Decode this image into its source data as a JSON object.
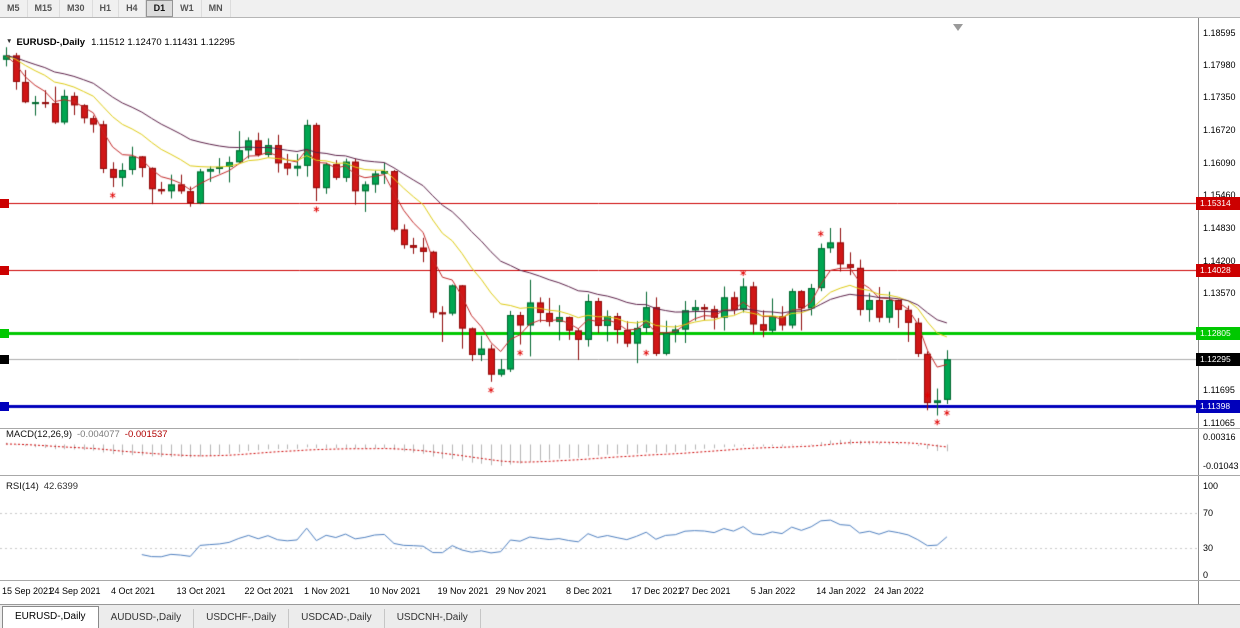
{
  "toolbar": {
    "timeframes": [
      "M5",
      "M15",
      "M30",
      "H1",
      "H4",
      "D1",
      "W1",
      "MN"
    ],
    "active": "D1"
  },
  "icons": {
    "chart_dropdown": "▼"
  },
  "chart": {
    "type": "candlestick",
    "symbol_title": "EURUSD-,Daily",
    "ohlc_text": "1.11512 1.12470 1.11431 1.12295",
    "colors": {
      "up": "#00a651",
      "up_dark": "#00662f",
      "down": "#d01616",
      "down_dark": "#8f0b0b",
      "bid_line": "#ababab",
      "marker": "#e00000"
    },
    "y_axis_ticks": [
      "1.18595",
      "1.17980",
      "1.17350",
      "1.16720",
      "1.16090",
      "1.15460",
      "1.14830",
      "1.14200",
      "1.13570",
      "1.11695",
      "1.11065"
    ],
    "price_lines": [
      {
        "price": 1.15314,
        "label": "1.15314",
        "color": "#cc0000",
        "width": 1
      },
      {
        "price": 1.14028,
        "label": "1.14028",
        "color": "#cc0000",
        "width": 1
      },
      {
        "price": 1.12805,
        "label": "1.12805",
        "color": "#00c800",
        "width": 3
      },
      {
        "price": 1.11398,
        "label": "1.11398",
        "color": "#0000bb",
        "width": 3
      }
    ],
    "bid": {
      "price": 1.12295,
      "label": "1.12295",
      "color": "#000000"
    },
    "ma": [
      {
        "period": 5,
        "color": "#c22828"
      },
      {
        "period": 13,
        "color": "#ddca12"
      },
      {
        "period": 24,
        "color": "#5a1e46"
      }
    ],
    "markers": [
      {
        "i": 11,
        "p": 1.1546
      },
      {
        "i": 32,
        "p": 1.1519
      },
      {
        "i": 50,
        "p": 1.117
      },
      {
        "i": 53,
        "p": 1.1242
      },
      {
        "i": 66,
        "p": 1.1242
      },
      {
        "i": 76,
        "p": 1.1396
      },
      {
        "i": 84,
        "p": 1.1472
      },
      {
        "i": 95,
        "p": 1.116
      },
      {
        "i": 96,
        "p": 1.1108
      },
      {
        "i": 97,
        "p": 1.1126
      }
    ],
    "date_labels": [
      {
        "text": "15 Sep 2021",
        "i": 0
      },
      {
        "text": "24 Sep 2021",
        "i": 7
      },
      {
        "text": "4 Oct 2021",
        "i": 13
      },
      {
        "text": "13 Oct 2021",
        "i": 20
      },
      {
        "text": "22 Oct 2021",
        "i": 27
      },
      {
        "text": "1 Nov 2021",
        "i": 33
      },
      {
        "text": "10 Nov 2021",
        "i": 40
      },
      {
        "text": "19 Nov 2021",
        "i": 47
      },
      {
        "text": "29 Nov 2021",
        "i": 53
      },
      {
        "text": "8 Dec 2021",
        "i": 60
      },
      {
        "text": "17 Dec 2021",
        "i": 67
      },
      {
        "text": "27 Dec 2021",
        "i": 72
      },
      {
        "text": "5 Jan 2022",
        "i": 79
      },
      {
        "text": "14 Jan 2022",
        "i": 86
      },
      {
        "text": "24 Jan 2022",
        "i": 92
      }
    ],
    "dates": [
      "15 Sep 2021",
      "16 Sep 2021",
      "17 Sep 2021",
      "20 Sep 2021",
      "21 Sep 2021",
      "22 Sep 2021",
      "23 Sep 2021",
      "24 Sep 2021",
      "27 Sep 2021",
      "28 Sep 2021",
      "29 Sep 2021",
      "30 Sep 2021",
      "1 Oct 2021",
      "4 Oct 2021",
      "5 Oct 2021",
      "6 Oct 2021",
      "7 Oct 2021",
      "8 Oct 2021",
      "11 Oct 2021",
      "12 Oct 2021",
      "13 Oct 2021",
      "14 Oct 2021",
      "15 Oct 2021",
      "18 Oct 2021",
      "19 Oct 2021",
      "20 Oct 2021",
      "21 Oct 2021",
      "22 Oct 2021",
      "25 Oct 2021",
      "26 Oct 2021",
      "27 Oct 2021",
      "28 Oct 2021",
      "29 Oct 2021",
      "1 Nov 2021",
      "2 Nov 2021",
      "3 Nov 2021",
      "4 Nov 2021",
      "5 Nov 2021",
      "8 Nov 2021",
      "9 Nov 2021",
      "10 Nov 2021",
      "11 Nov 2021",
      "12 Nov 2021",
      "15 Nov 2021",
      "16 Nov 2021",
      "17 Nov 2021",
      "18 Nov 2021",
      "19 Nov 2021",
      "22 Nov 2021",
      "23 Nov 2021",
      "24 Nov 2021",
      "25 Nov 2021",
      "26 Nov 2021",
      "29 Nov 2021",
      "30 Nov 2021",
      "1 Dec 2021",
      "2 Dec 2021",
      "3 Dec 2021",
      "6 Dec 2021",
      "7 Dec 2021",
      "8 Dec 2021",
      "9 Dec 2021",
      "10 Dec 2021",
      "13 Dec 2021",
      "14 Dec 2021",
      "15 Dec 2021",
      "16 Dec 2021",
      "17 Dec 2021",
      "20 Dec 2021",
      "21 Dec 2021",
      "22 Dec 2021",
      "23 Dec 2021",
      "27 Dec 2021",
      "28 Dec 2021",
      "29 Dec 2021",
      "30 Dec 2021",
      "31 Dec 2021",
      "3 Jan 2022",
      "4 Jan 2022",
      "5 Jan 2022",
      "6 Jan 2022",
      "7 Jan 2022",
      "10 Jan 2022",
      "11 Jan 2022",
      "12 Jan 2022",
      "13 Jan 2022",
      "14 Jan 2022",
      "17 Jan 2022",
      "18 Jan 2022",
      "19 Jan 2022",
      "20 Jan 2022",
      "21 Jan 2022",
      "24 Jan 2022",
      "25 Jan 2022",
      "26 Jan 2022",
      "27 Jan 2022",
      "28 Jan 2022",
      "31 Jan 2022"
    ],
    "ohlc": [
      [
        1.1808,
        1.1832,
        1.1795,
        1.1816
      ],
      [
        1.1816,
        1.1821,
        1.175,
        1.1765
      ],
      [
        1.1765,
        1.1788,
        1.1724,
        1.1726
      ],
      [
        1.1726,
        1.1738,
        1.17,
        1.1726
      ],
      [
        1.1726,
        1.1749,
        1.1715,
        1.1724
      ],
      [
        1.1724,
        1.1756,
        1.1684,
        1.1687
      ],
      [
        1.1687,
        1.175,
        1.1683,
        1.1738
      ],
      [
        1.1738,
        1.1745,
        1.1701,
        1.172
      ],
      [
        1.172,
        1.1722,
        1.1685,
        1.1695
      ],
      [
        1.1695,
        1.17,
        1.1667,
        1.1683
      ],
      [
        1.1683,
        1.169,
        1.1589,
        1.1597
      ],
      [
        1.1597,
        1.161,
        1.1562,
        1.158
      ],
      [
        1.158,
        1.1608,
        1.1563,
        1.1595
      ],
      [
        1.1595,
        1.164,
        1.1586,
        1.1621
      ],
      [
        1.1621,
        1.1622,
        1.1581,
        1.1599
      ],
      [
        1.1599,
        1.16,
        1.1529,
        1.1558
      ],
      [
        1.1558,
        1.1572,
        1.1548,
        1.1554
      ],
      [
        1.1554,
        1.1586,
        1.154,
        1.1567
      ],
      [
        1.1567,
        1.1586,
        1.1549,
        1.1554
      ],
      [
        1.1554,
        1.1563,
        1.1524,
        1.1531
      ],
      [
        1.1531,
        1.1597,
        1.1529,
        1.1592
      ],
      [
        1.1592,
        1.1602,
        1.1572,
        1.1597
      ],
      [
        1.1597,
        1.1618,
        1.1588,
        1.1601
      ],
      [
        1.1601,
        1.1621,
        1.1571,
        1.161
      ],
      [
        1.161,
        1.167,
        1.1609,
        1.1633
      ],
      [
        1.1633,
        1.1658,
        1.1617,
        1.1652
      ],
      [
        1.1652,
        1.1667,
        1.1621,
        1.1624
      ],
      [
        1.1624,
        1.1656,
        1.162,
        1.1643
      ],
      [
        1.1643,
        1.1663,
        1.159,
        1.1608
      ],
      [
        1.1608,
        1.1626,
        1.1585,
        1.1598
      ],
      [
        1.1598,
        1.1626,
        1.1583,
        1.1603
      ],
      [
        1.1603,
        1.1692,
        1.1582,
        1.1682
      ],
      [
        1.1682,
        1.1686,
        1.1535,
        1.156
      ],
      [
        1.156,
        1.1609,
        1.1549,
        1.1606
      ],
      [
        1.1606,
        1.1614,
        1.1576,
        1.158
      ],
      [
        1.158,
        1.1617,
        1.1572,
        1.1611
      ],
      [
        1.1611,
        1.1617,
        1.1528,
        1.1554
      ],
      [
        1.1554,
        1.1573,
        1.1514,
        1.1567
      ],
      [
        1.1567,
        1.1594,
        1.1551,
        1.1588
      ],
      [
        1.1588,
        1.1609,
        1.1568,
        1.1593
      ],
      [
        1.1593,
        1.1595,
        1.1476,
        1.148
      ],
      [
        1.148,
        1.149,
        1.1443,
        1.145
      ],
      [
        1.145,
        1.1464,
        1.1433,
        1.1445
      ],
      [
        1.1445,
        1.1464,
        1.1417,
        1.1437
      ],
      [
        1.1437,
        1.1439,
        1.1309,
        1.132
      ],
      [
        1.132,
        1.1332,
        1.1263,
        1.1318
      ],
      [
        1.1318,
        1.1374,
        1.1314,
        1.1372
      ],
      [
        1.1372,
        1.1373,
        1.125,
        1.1289
      ],
      [
        1.1289,
        1.1291,
        1.1226,
        1.1238
      ],
      [
        1.1238,
        1.1275,
        1.1226,
        1.125
      ],
      [
        1.125,
        1.1258,
        1.1186,
        1.12
      ],
      [
        1.12,
        1.123,
        1.1196,
        1.121
      ],
      [
        1.121,
        1.1323,
        1.1205,
        1.1315
      ],
      [
        1.1315,
        1.1321,
        1.1258,
        1.1295
      ],
      [
        1.1295,
        1.1383,
        1.1235,
        1.1339
      ],
      [
        1.1339,
        1.1349,
        1.1301,
        1.1319
      ],
      [
        1.1319,
        1.1348,
        1.1293,
        1.1302
      ],
      [
        1.1302,
        1.1334,
        1.1266,
        1.1311
      ],
      [
        1.1311,
        1.1312,
        1.1267,
        1.1285
      ],
      [
        1.1285,
        1.1289,
        1.1228,
        1.1267
      ],
      [
        1.1267,
        1.1355,
        1.1254,
        1.1342
      ],
      [
        1.1342,
        1.1348,
        1.128,
        1.1294
      ],
      [
        1.1294,
        1.1324,
        1.1264,
        1.1313
      ],
      [
        1.1313,
        1.1319,
        1.126,
        1.1286
      ],
      [
        1.1286,
        1.1303,
        1.1253,
        1.126
      ],
      [
        1.126,
        1.1303,
        1.1222,
        1.129
      ],
      [
        1.129,
        1.136,
        1.128,
        1.133
      ],
      [
        1.133,
        1.1349,
        1.1236,
        1.124
      ],
      [
        1.124,
        1.1304,
        1.1237,
        1.128
      ],
      [
        1.128,
        1.1295,
        1.1262,
        1.1287
      ],
      [
        1.1287,
        1.1342,
        1.1261,
        1.1324
      ],
      [
        1.1324,
        1.1344,
        1.1304,
        1.133
      ],
      [
        1.133,
        1.1336,
        1.1305,
        1.1326
      ],
      [
        1.1326,
        1.1333,
        1.1287,
        1.131
      ],
      [
        1.131,
        1.137,
        1.1285,
        1.1349
      ],
      [
        1.1349,
        1.136,
        1.1316,
        1.1325
      ],
      [
        1.1325,
        1.1386,
        1.132,
        1.137
      ],
      [
        1.137,
        1.1379,
        1.1279,
        1.1297
      ],
      [
        1.1297,
        1.1324,
        1.1272,
        1.1285
      ],
      [
        1.1285,
        1.1347,
        1.1281,
        1.1313
      ],
      [
        1.1313,
        1.1332,
        1.1285,
        1.1295
      ],
      [
        1.1295,
        1.1366,
        1.1289,
        1.1361
      ],
      [
        1.1361,
        1.1363,
        1.1285,
        1.1328
      ],
      [
        1.1328,
        1.1375,
        1.1314,
        1.1367
      ],
      [
        1.1367,
        1.1453,
        1.1361,
        1.1444
      ],
      [
        1.1444,
        1.1483,
        1.1435,
        1.1455
      ],
      [
        1.1455,
        1.1483,
        1.1399,
        1.1413
      ],
      [
        1.1413,
        1.1436,
        1.1392,
        1.1406
      ],
      [
        1.1406,
        1.1422,
        1.1314,
        1.1325
      ],
      [
        1.1325,
        1.1357,
        1.1302,
        1.1344
      ],
      [
        1.1344,
        1.1369,
        1.1301,
        1.131
      ],
      [
        1.131,
        1.136,
        1.13,
        1.1344
      ],
      [
        1.1344,
        1.1345,
        1.129,
        1.1325
      ],
      [
        1.1325,
        1.1333,
        1.1263,
        1.13
      ],
      [
        1.13,
        1.1309,
        1.1234,
        1.124
      ],
      [
        1.124,
        1.1245,
        1.1131,
        1.1145
      ],
      [
        1.1145,
        1.1173,
        1.1121,
        1.115
      ],
      [
        1.11512,
        1.1247,
        1.11431,
        1.12295
      ]
    ]
  },
  "macd": {
    "label": "MACD(12,26,9)",
    "value_main": "-0.004077",
    "value_signal": "-0.001537",
    "fast": 12,
    "slow": 26,
    "signal": 9,
    "axis_labels": [
      {
        "text": "0.00316",
        "value": 0.00316
      },
      {
        "text": "-0.01043",
        "value": -0.01043
      }
    ],
    "colors": {
      "histogram": "#b4b4b4",
      "signal": "#cc0000"
    }
  },
  "rsi": {
    "label": "RSI(14)",
    "value": "42.6399",
    "period": 14,
    "levels": [
      70,
      30
    ],
    "axis_labels": [
      {
        "text": "100",
        "value": 100
      },
      {
        "text": "70",
        "value": 70
      },
      {
        "text": "30",
        "value": 30
      },
      {
        "text": "0",
        "value": 0
      }
    ],
    "color": "#4e7fbf"
  },
  "tabs": [
    {
      "label": "EURUSD-,Daily",
      "active": true
    },
    {
      "label": "AUDUSD-,Daily",
      "active": false
    },
    {
      "label": "USDCHF-,Daily",
      "active": false
    },
    {
      "label": "USDCAD-,Daily",
      "active": false
    },
    {
      "label": "USDCNH-,Daily",
      "active": false
    }
  ]
}
